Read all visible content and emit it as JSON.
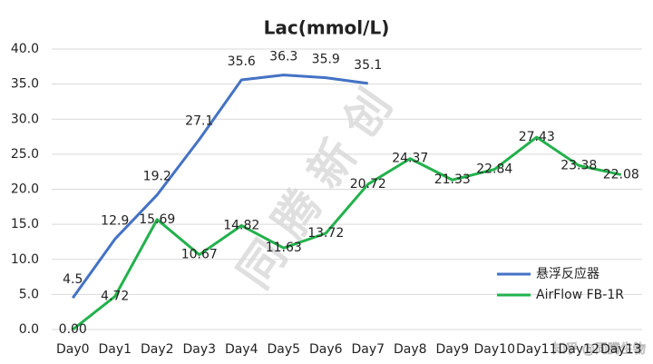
{
  "chart_data": {
    "type": "line",
    "title": "Lac(mmol/L)",
    "categories": [
      "Day0",
      "Day1",
      "Day2",
      "Day3",
      "Day4",
      "Day5",
      "Day6",
      "Day7",
      "Day8",
      "Day9",
      "Day10",
      "Day11",
      "Day12",
      "Day13"
    ],
    "series": [
      {
        "name": "悬浮反应器",
        "color": "#4472c4",
        "values": [
          4.5,
          12.9,
          19.2,
          27.1,
          35.6,
          36.3,
          35.9,
          35.1,
          null,
          null,
          null,
          null,
          null,
          null
        ],
        "value_labels": [
          "4.5",
          "12.9",
          "19.2",
          "27.1",
          "35.6",
          "36.3",
          "35.9",
          "35.1",
          null,
          null,
          null,
          null,
          null,
          null
        ]
      },
      {
        "name": "AirFlow FB-1R",
        "color": "#22b14c",
        "values": [
          0,
          4.72,
          15.69,
          10.67,
          14.82,
          11.63,
          13.72,
          20.72,
          24.37,
          21.33,
          22.84,
          27.43,
          23.38,
          22.08
        ],
        "value_labels": [
          "0.00",
          "4.72",
          "15.69",
          "10.67",
          "14.82",
          "11.63",
          "13.72",
          "20.72",
          "24.37",
          "21.33",
          "22.84",
          "27.43",
          "23.38",
          "22.08"
        ]
      }
    ],
    "ylim": [
      0,
      40
    ],
    "yticks": [
      {
        "value": 0,
        "label": "0.0"
      },
      {
        "value": 5,
        "label": "5.0"
      },
      {
        "value": 10,
        "label": "10.0"
      },
      {
        "value": 15,
        "label": "15.0"
      },
      {
        "value": 20,
        "label": "20.0"
      },
      {
        "value": 25,
        "label": "25.0"
      },
      {
        "value": 30,
        "label": "30.0"
      },
      {
        "value": 35,
        "label": "35.0"
      },
      {
        "value": 40,
        "label": "40.0"
      }
    ],
    "grid": true,
    "legend": "lower right",
    "watermark": "同 腾 新 创",
    "credit": "知乎 @同腾生物"
  }
}
